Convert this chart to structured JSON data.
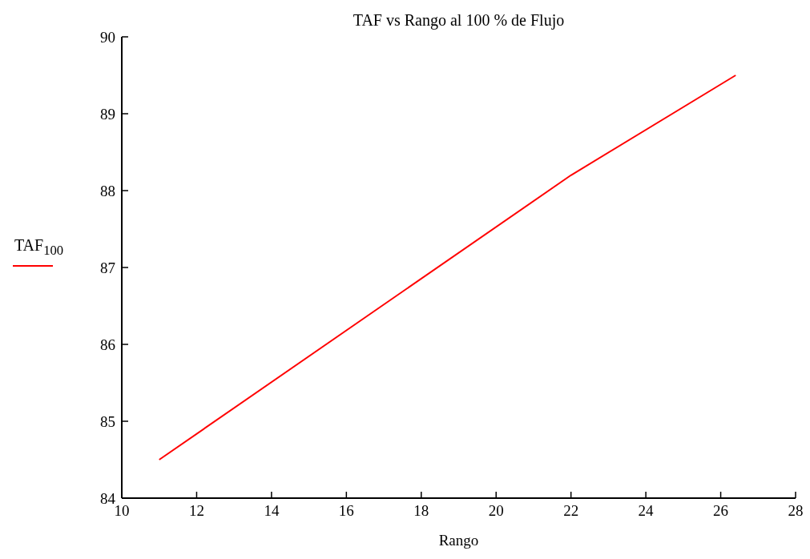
{
  "chart_data": {
    "type": "line",
    "title": "TAF vs Rango al 100 % de Flujo",
    "xlabel": "Rango",
    "x": [
      11,
      22,
      26.4
    ],
    "series": [
      {
        "name": "TAF$_{100}$",
        "color": "#ff0000",
        "values": [
          84.5,
          88.2,
          89.5
        ]
      }
    ],
    "xlim": [
      10,
      28
    ],
    "xticks": [
      10,
      12,
      14,
      16,
      18,
      20,
      22,
      24,
      26,
      28
    ],
    "ylim": [
      84,
      90
    ],
    "yticks": [
      84,
      85,
      86,
      87,
      88,
      89,
      90
    ],
    "grid": false,
    "legend": "left",
    "marker": "none",
    "line_style": "solid"
  }
}
